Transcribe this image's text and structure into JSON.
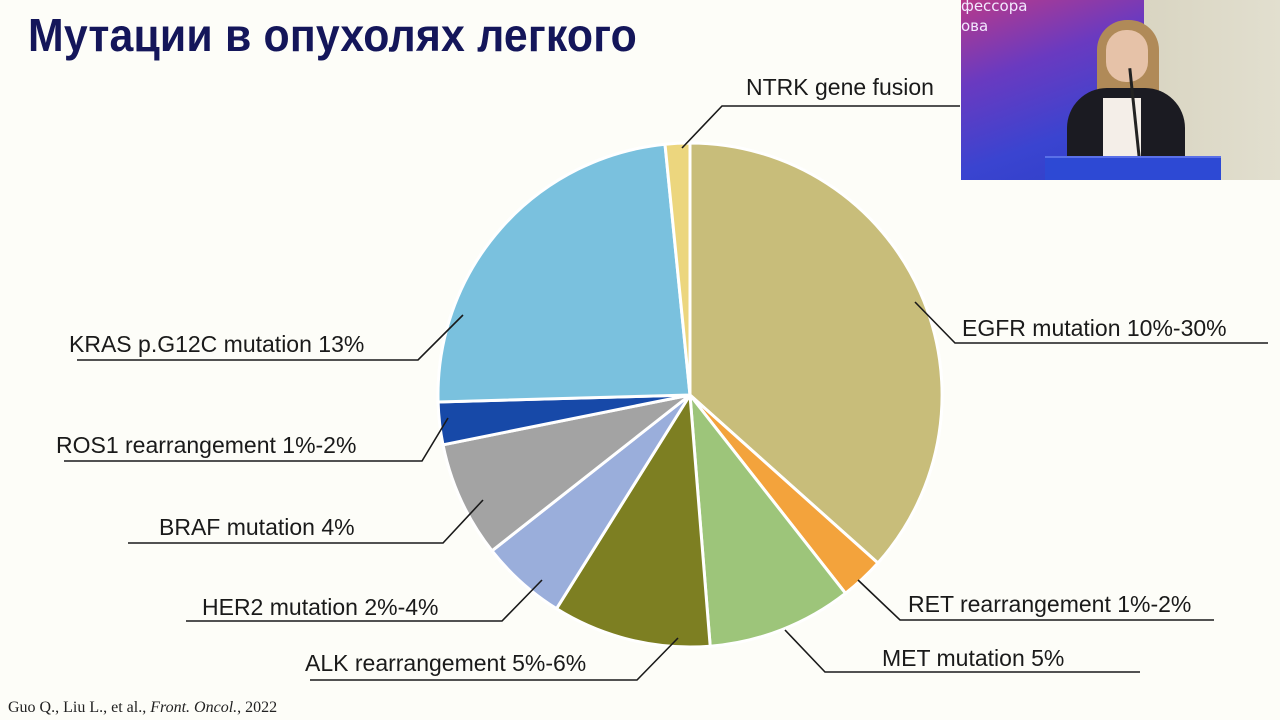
{
  "slide": {
    "title": "Мутации в опухолях легкого",
    "citation": {
      "authors": "Guo Q., Liu L., et al., ",
      "journal": "Front. Oncol.",
      "year": ", 2022"
    }
  },
  "video_overlay": {
    "banner_line1": "фессора",
    "banner_line2": "ова"
  },
  "chart_data": {
    "type": "pie",
    "title": "Мутации в опухолях легкого",
    "start_angle_deg": 0,
    "direction": "clockwise",
    "slices": [
      {
        "label": "EGFR mutation 10%-30%",
        "start_deg": 0,
        "end_deg": 131.8,
        "color": "#c8bd7a"
      },
      {
        "label": "RET rearrangement 1%-2%",
        "start_deg": 131.8,
        "end_deg": 141.9,
        "color": "#f3a33c"
      },
      {
        "label": "MET mutation 5%",
        "start_deg": 141.9,
        "end_deg": 175.4,
        "color": "#9dc57a"
      },
      {
        "label": "ALK rearrangement  5%-6%",
        "start_deg": 175.4,
        "end_deg": 212.0,
        "color": "#7d7f22"
      },
      {
        "label": "HER2 mutation 2%-4%",
        "start_deg": 212.0,
        "end_deg": 231.8,
        "color": "#9aaedb"
      },
      {
        "label": "BRAF mutation 4%",
        "start_deg": 231.8,
        "end_deg": 258.6,
        "color": "#a3a3a3"
      },
      {
        "label": "ROS1 rearrangement 1%-2%",
        "start_deg": 258.6,
        "end_deg": 268.4,
        "color": "#1749a8"
      },
      {
        "label": "KRAS p.G12C mutation 13%",
        "start_deg": 268.4,
        "end_deg": 354.3,
        "color": "#7ac1de"
      },
      {
        "label": "NTRK gene fusion",
        "start_deg": 354.3,
        "end_deg": 360,
        "color": "#ecd67e"
      }
    ],
    "legend": "leader-line labels",
    "labels": {
      "egfr": "EGFR mutation 10%-30%",
      "ret": "RET rearrangement 1%-2%",
      "met": "MET mutation 5%",
      "alk": "ALK rearrangement  5%-6%",
      "her2": "HER2 mutation 2%-4%",
      "braf": "BRAF mutation 4%",
      "ros1": "ROS1 rearrangement 1%-2%",
      "kras": "KRAS p.G12C mutation 13%",
      "ntrk": "NTRK gene fusion"
    }
  }
}
